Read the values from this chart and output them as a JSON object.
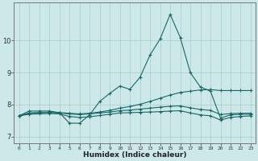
{
  "xlabel": "Humidex (Indice chaleur)",
  "xlim": [
    -0.5,
    23.5
  ],
  "ylim": [
    6.8,
    11.2
  ],
  "yticks": [
    7,
    8,
    9,
    10
  ],
  "xtick_labels": [
    "0",
    "1",
    "2",
    "3",
    "4",
    "5",
    "6",
    "7",
    "8",
    "9",
    "10",
    "11",
    "12",
    "13",
    "14",
    "15",
    "16",
    "17",
    "18",
    "19",
    "20",
    "21",
    "22",
    "23"
  ],
  "bg_color": "#cce8e8",
  "line_color": "#1a6666",
  "grid_color": "#aacccc",
  "lines": [
    {
      "x": [
        0,
        1,
        2,
        3,
        4,
        5,
        6,
        7,
        8,
        9,
        10,
        11,
        12,
        13,
        14,
        15,
        16,
        17,
        18,
        19,
        20,
        21,
        22,
        23
      ],
      "y": [
        7.65,
        7.8,
        7.8,
        7.8,
        7.75,
        7.42,
        7.42,
        7.68,
        8.1,
        8.35,
        8.58,
        8.48,
        8.85,
        9.55,
        10.05,
        10.82,
        10.1,
        9.0,
        8.55,
        8.42,
        7.58,
        7.68,
        7.7,
        7.7
      ]
    },
    {
      "x": [
        0,
        1,
        2,
        3,
        4,
        5,
        6,
        7,
        8,
        9,
        10,
        11,
        12,
        13,
        14,
        15,
        16,
        17,
        18,
        19,
        20,
        21,
        22,
        23
      ],
      "y": [
        7.65,
        7.73,
        7.75,
        7.76,
        7.75,
        7.73,
        7.71,
        7.73,
        7.77,
        7.82,
        7.89,
        7.94,
        8.01,
        8.1,
        8.2,
        8.3,
        8.38,
        8.42,
        8.46,
        8.47,
        8.44,
        8.44,
        8.44,
        8.44
      ]
    },
    {
      "x": [
        0,
        1,
        2,
        3,
        4,
        5,
        6,
        7,
        8,
        9,
        10,
        11,
        12,
        13,
        14,
        15,
        16,
        17,
        18,
        19,
        20,
        21,
        22,
        23
      ],
      "y": [
        7.65,
        7.7,
        7.71,
        7.72,
        7.71,
        7.63,
        7.6,
        7.62,
        7.66,
        7.7,
        7.74,
        7.75,
        7.76,
        7.77,
        7.78,
        7.8,
        7.81,
        7.74,
        7.68,
        7.65,
        7.52,
        7.6,
        7.63,
        7.65
      ]
    },
    {
      "x": [
        0,
        1,
        2,
        3,
        4,
        5,
        6,
        7,
        8,
        9,
        10,
        11,
        12,
        13,
        14,
        15,
        16,
        17,
        18,
        19,
        20,
        21,
        22,
        23
      ],
      "y": [
        7.65,
        7.74,
        7.75,
        7.76,
        7.74,
        7.71,
        7.69,
        7.71,
        7.74,
        7.77,
        7.81,
        7.83,
        7.86,
        7.89,
        7.92,
        7.95,
        7.96,
        7.9,
        7.85,
        7.82,
        7.69,
        7.72,
        7.73,
        7.73
      ]
    }
  ]
}
